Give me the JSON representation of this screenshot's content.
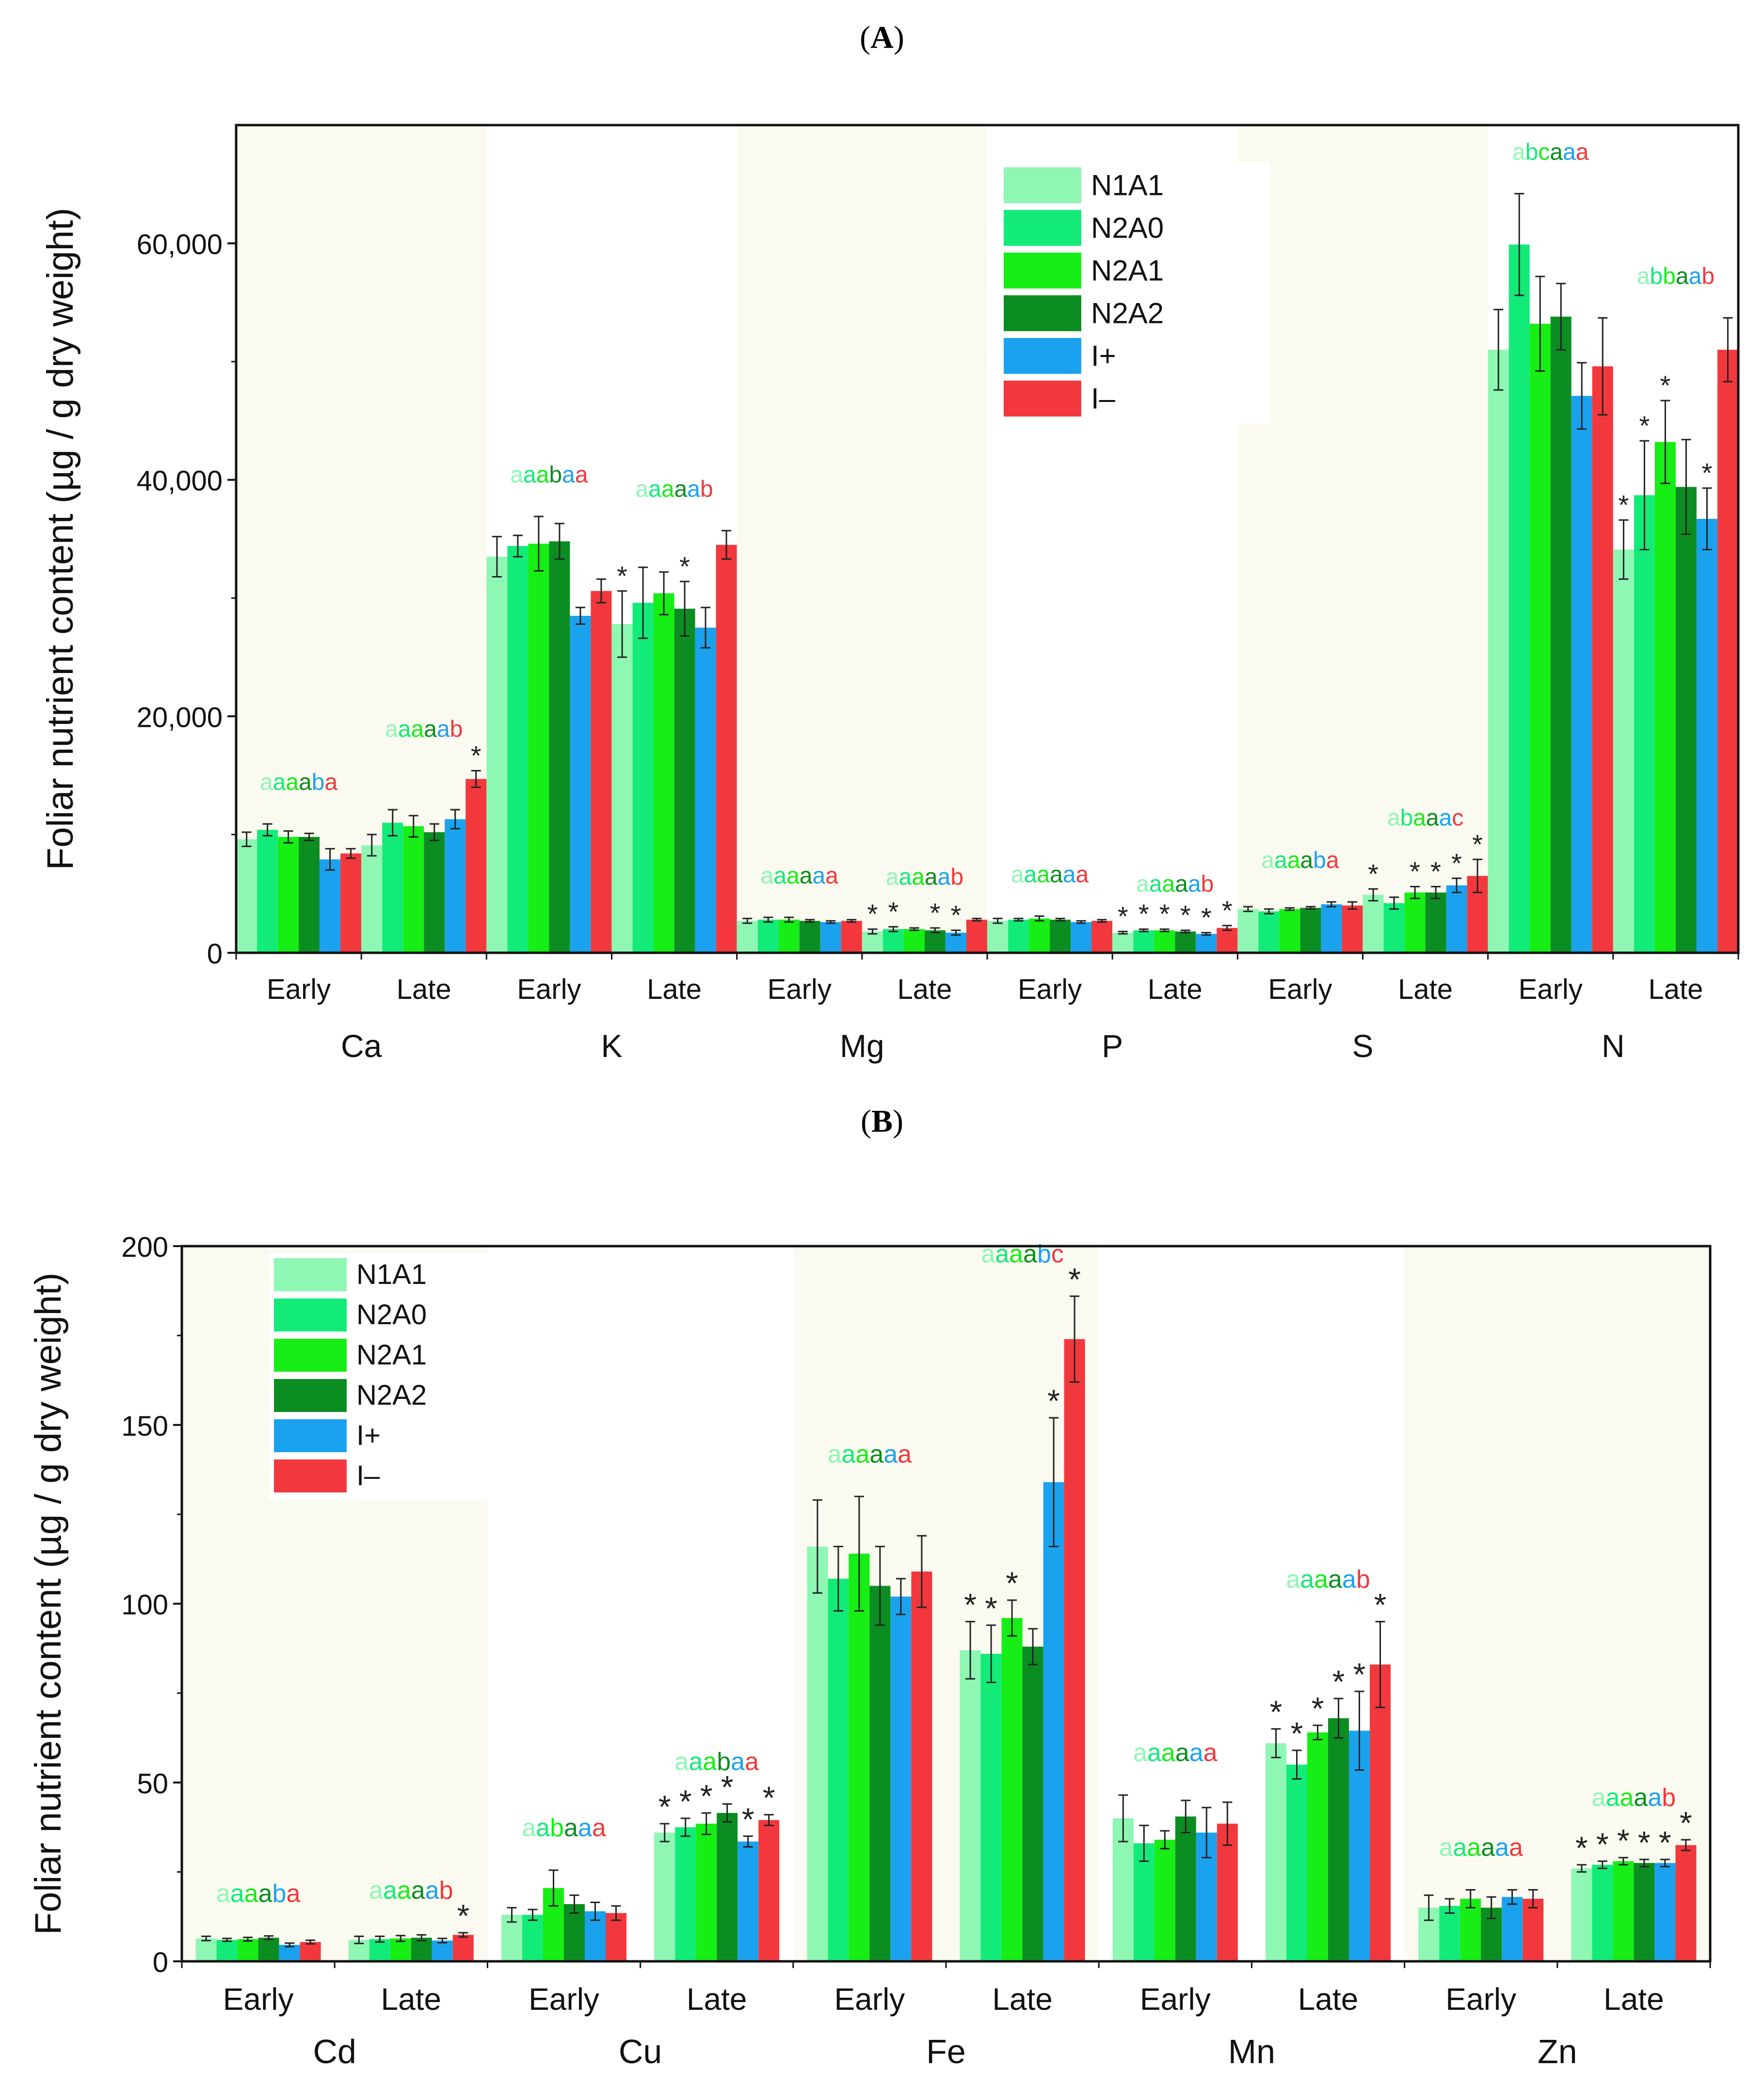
{
  "colors": {
    "N1A1": "#8ef7b3",
    "N2A0": "#13eb79",
    "N2A1": "#16ee16",
    "N2A2": "#0c8d22",
    "I+": "#1ba2ee",
    "I-": "#f2383d",
    "band": "#fbfaf0"
  },
  "chart_data": [
    {
      "panel": "A",
      "type": "bar",
      "ylabel": "Foliar nutrient content (µg / g dry weight)",
      "ylim": [
        0,
        70000
      ],
      "yticks": [
        0,
        20000,
        40000,
        60000
      ],
      "ytick_labels": [
        "0",
        "20,000",
        "40,000",
        "60,000"
      ],
      "legend_position": "top-center",
      "series_names": [
        "N1A1",
        "N2A0",
        "N2A1",
        "N2A2",
        "I+",
        "I–"
      ],
      "groups": [
        {
          "nutrient": "Ca",
          "stage": "Early",
          "values": [
            9600,
            10400,
            9800,
            9800,
            7900,
            8400
          ],
          "errors": [
            600,
            500,
            500,
            300,
            900,
            400
          ],
          "letters": "aaaaba",
          "stars": [
            0,
            0,
            0,
            0,
            0,
            0
          ]
        },
        {
          "nutrient": "Ca",
          "stage": "Late",
          "values": [
            9100,
            11000,
            10700,
            10200,
            11300,
            14700
          ],
          "errors": [
            900,
            1100,
            900,
            700,
            800,
            700
          ],
          "letters": "aaaaab",
          "stars": [
            0,
            0,
            0,
            0,
            0,
            1
          ]
        },
        {
          "nutrient": "K",
          "stage": "Early",
          "values": [
            33500,
            34400,
            34600,
            34800,
            28500,
            30600
          ],
          "errors": [
            1700,
            900,
            2300,
            1500,
            700,
            1000
          ],
          "letters": "aaabaa",
          "stars": [
            0,
            0,
            0,
            0,
            0,
            0
          ]
        },
        {
          "nutrient": "K",
          "stage": "Late",
          "values": [
            27800,
            29600,
            30400,
            29100,
            27500,
            34500
          ],
          "errors": [
            2800,
            3000,
            1800,
            2300,
            1700,
            1200
          ],
          "letters": "aaaaab",
          "stars": [
            1,
            0,
            0,
            1,
            0,
            0
          ]
        },
        {
          "nutrient": "Mg",
          "stage": "Early",
          "values": [
            2700,
            2800,
            2800,
            2700,
            2600,
            2700
          ],
          "errors": [
            200,
            200,
            200,
            100,
            100,
            100
          ],
          "letters": "aaaaaa",
          "stars": [
            0,
            0,
            0,
            0,
            0,
            0
          ]
        },
        {
          "nutrient": "Mg",
          "stage": "Late",
          "values": [
            1800,
            2000,
            2000,
            1900,
            1700,
            2800
          ],
          "errors": [
            200,
            200,
            100,
            200,
            200,
            100
          ],
          "letters": "aaaaab",
          "stars": [
            1,
            1,
            0,
            1,
            1,
            0
          ]
        },
        {
          "nutrient": "P",
          "stage": "Early",
          "values": [
            2700,
            2800,
            2900,
            2800,
            2600,
            2700
          ],
          "errors": [
            200,
            100,
            200,
            100,
            100,
            100
          ],
          "letters": "aaaaaa",
          "stars": [
            0,
            0,
            0,
            0,
            0,
            0
          ]
        },
        {
          "nutrient": "P",
          "stage": "Late",
          "values": [
            1700,
            1900,
            1900,
            1800,
            1600,
            2100
          ],
          "errors": [
            100,
            100,
            100,
            100,
            100,
            200
          ],
          "letters": "aaaaab",
          "stars": [
            1,
            1,
            1,
            1,
            1,
            1
          ]
        },
        {
          "nutrient": "S",
          "stage": "Early",
          "values": [
            3700,
            3500,
            3700,
            3800,
            4100,
            4000
          ],
          "errors": [
            200,
            200,
            100,
            100,
            200,
            300
          ],
          "letters": "aaaaba",
          "stars": [
            0,
            0,
            0,
            0,
            0,
            0
          ]
        },
        {
          "nutrient": "S",
          "stage": "Late",
          "values": [
            4900,
            4200,
            5100,
            5100,
            5700,
            6500
          ],
          "errors": [
            500,
            500,
            500,
            500,
            600,
            1400
          ],
          "letters": "abaaac",
          "stars": [
            1,
            0,
            1,
            1,
            1,
            1
          ]
        },
        {
          "nutrient": "N",
          "stage": "Early",
          "values": [
            51000,
            59900,
            53200,
            53800,
            47100,
            49600
          ],
          "errors": [
            3400,
            4300,
            4000,
            2800,
            2800,
            4100
          ],
          "letters": "abcaaa",
          "stars": [
            0,
            0,
            0,
            0,
            0,
            0
          ]
        },
        {
          "nutrient": "N",
          "stage": "Late",
          "values": [
            34100,
            38700,
            43200,
            39400,
            36700,
            51000
          ],
          "errors": [
            2500,
            4600,
            3500,
            4000,
            2600,
            2700
          ],
          "letters": "abbaab",
          "stars": [
            1,
            1,
            1,
            0,
            1,
            0
          ]
        }
      ],
      "stage_labels": [
        "Early",
        "Late",
        "Early",
        "Late",
        "Early",
        "Late",
        "Early",
        "Late",
        "Early",
        "Late",
        "Early",
        "Late"
      ],
      "nutrient_labels": [
        "Ca",
        "K",
        "Mg",
        "P",
        "S",
        "N"
      ]
    },
    {
      "panel": "B",
      "type": "bar",
      "ylabel": "Foliar nutrient content (µg / g dry weight)",
      "ylim": [
        0,
        200
      ],
      "yticks": [
        0,
        50,
        100,
        150,
        200
      ],
      "ytick_labels": [
        "0",
        "50",
        "100",
        "150",
        "200"
      ],
      "legend_position": "top-left",
      "series_names": [
        "N1A1",
        "N2A0",
        "N2A1",
        "N2A2",
        "I+",
        "I–"
      ],
      "groups": [
        {
          "nutrient": "Cd",
          "stage": "Early",
          "values": [
            6.4,
            6.0,
            6.2,
            6.6,
            4.6,
            5.4
          ],
          "errors": [
            0.6,
            0.4,
            0.5,
            0.5,
            0.5,
            0.5
          ],
          "letters": "aaaaba",
          "stars": [
            0,
            0,
            0,
            0,
            0,
            0
          ]
        },
        {
          "nutrient": "Cd",
          "stage": "Late",
          "values": [
            6.0,
            6.2,
            6.4,
            6.6,
            5.8,
            7.4
          ],
          "errors": [
            1.0,
            0.8,
            0.8,
            0.8,
            0.6,
            0.6
          ],
          "letters": "aaaaab",
          "stars": [
            0,
            0,
            0,
            0,
            0,
            1
          ]
        },
        {
          "nutrient": "Cu",
          "stage": "Early",
          "values": [
            13,
            13,
            20.5,
            16,
            14,
            13.5
          ],
          "errors": [
            2,
            1.5,
            5,
            2.5,
            2.5,
            2
          ],
          "letters": "aabaaa",
          "stars": [
            0,
            0,
            0,
            0,
            0,
            0
          ]
        },
        {
          "nutrient": "Cu",
          "stage": "Late",
          "values": [
            36,
            37.5,
            38.5,
            41.5,
            33.5,
            39.5
          ],
          "errors": [
            2.5,
            2.5,
            3,
            2.5,
            1.5,
            1.5
          ],
          "letters": "aaabaa",
          "stars": [
            1,
            1,
            1,
            1,
            1,
            1
          ]
        },
        {
          "nutrient": "Fe",
          "stage": "Early",
          "values": [
            116,
            107,
            114,
            105,
            102,
            109
          ],
          "errors": [
            13,
            9,
            16,
            11,
            5,
            10
          ],
          "letters": "aaaaaa",
          "stars": [
            0,
            0,
            0,
            0,
            0,
            0
          ]
        },
        {
          "nutrient": "Fe",
          "stage": "Late",
          "values": [
            87,
            86,
            96,
            88,
            134,
            174
          ],
          "errors": [
            8,
            8,
            5,
            5,
            18,
            12
          ],
          "letters": "aaaabc",
          "stars": [
            1,
            1,
            1,
            0,
            1,
            1
          ]
        },
        {
          "nutrient": "Mn",
          "stage": "Early",
          "values": [
            40,
            33,
            34,
            40.5,
            36,
            38.5
          ],
          "errors": [
            6.5,
            5,
            2.5,
            4.5,
            7,
            6
          ],
          "letters": "aaaaaa",
          "stars": [
            0,
            0,
            0,
            0,
            0,
            0
          ]
        },
        {
          "nutrient": "Mn",
          "stage": "Late",
          "values": [
            61,
            55,
            64,
            68,
            64.5,
            83
          ],
          "errors": [
            4,
            4,
            2,
            5.5,
            11,
            12
          ],
          "letters": "aaaaab",
          "stars": [
            1,
            1,
            1,
            1,
            1,
            1
          ]
        },
        {
          "nutrient": "Zn",
          "stage": "Early",
          "values": [
            15,
            15.5,
            17.5,
            15,
            18,
            17.5
          ],
          "errors": [
            3.5,
            2,
            2.5,
            3,
            2,
            2.5
          ],
          "letters": "aaaaaa",
          "stars": [
            0,
            0,
            0,
            0,
            0,
            0
          ]
        },
        {
          "nutrient": "Zn",
          "stage": "Late",
          "values": [
            26,
            27,
            28,
            27.5,
            27.5,
            32.5
          ],
          "errors": [
            1,
            1,
            1,
            1,
            1,
            1.5
          ],
          "letters": "aaaaab",
          "stars": [
            1,
            1,
            1,
            1,
            1,
            1
          ]
        }
      ],
      "stage_labels": [
        "Early",
        "Late",
        "Early",
        "Late",
        "Early",
        "Late",
        "Early",
        "Late",
        "Early",
        "Late"
      ],
      "nutrient_labels": [
        "Cd",
        "Cu",
        "Fe",
        "Mn",
        "Zn"
      ]
    }
  ],
  "panel_labels": {
    "a": "A",
    "b": "B"
  },
  "star_symbol": "*"
}
